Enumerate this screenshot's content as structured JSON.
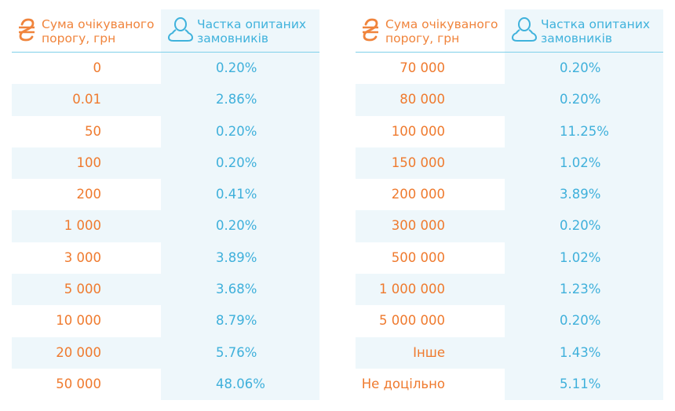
{
  "headers": {
    "amount": "Сума очікуваного\nпорогу, грн",
    "share": "Частка опитаних\nзамовників",
    "amount_icon": "hryvnia-icon",
    "share_icon": "person-icon"
  },
  "colors": {
    "orange": "#ef7a2e",
    "blue": "#3fb0db",
    "stripe": "#eef7fb"
  },
  "left_rows": [
    {
      "amount": "0",
      "share": "0.20%"
    },
    {
      "amount": "0.01",
      "share": "2.86%"
    },
    {
      "amount": "50",
      "share": "0.20%"
    },
    {
      "amount": "100",
      "share": "0.20%"
    },
    {
      "amount": "200",
      "share": "0.41%"
    },
    {
      "amount": "1 000",
      "share": "0.20%"
    },
    {
      "amount": "3 000",
      "share": "3.89%"
    },
    {
      "amount": "5 000",
      "share": "3.68%"
    },
    {
      "amount": "10 000",
      "share": "8.79%"
    },
    {
      "amount": "20 000",
      "share": "5.76%"
    },
    {
      "amount": "50 000",
      "share": "48.06%"
    }
  ],
  "right_rows": [
    {
      "amount": "70 000",
      "share": "0.20%"
    },
    {
      "amount": "80 000",
      "share": "0.20%"
    },
    {
      "amount": "100 000",
      "share": "11.25%"
    },
    {
      "amount": "150 000",
      "share": "1.02%"
    },
    {
      "amount": "200 000",
      "share": "3.89%"
    },
    {
      "amount": "300 000",
      "share": "0.20%"
    },
    {
      "amount": "500 000",
      "share": "1.02%"
    },
    {
      "amount": "1 000 000",
      "share": "1.23%"
    },
    {
      "amount": "5 000 000",
      "share": "0.20%"
    },
    {
      "amount": "Інше",
      "share": "1.43%"
    },
    {
      "amount": "Не доцільно",
      "share": "5.11%"
    }
  ]
}
